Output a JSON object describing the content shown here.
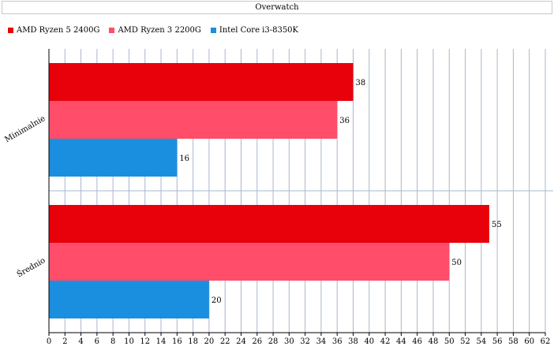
{
  "chart_data": {
    "type": "bar",
    "orientation": "horizontal",
    "title": "Overwatch",
    "categories": [
      "Minimalnie",
      "Średnio"
    ],
    "series": [
      {
        "name": "AMD Ryzen 5 2400G",
        "color": "#e8000b",
        "values": [
          38,
          55
        ]
      },
      {
        "name": "AMD Ryzen 3 2200G",
        "color": "#ff4d6a",
        "values": [
          36,
          50
        ]
      },
      {
        "name": "Intel Core i3-8350K",
        "color": "#1a8fe0",
        "values": [
          16,
          20
        ]
      }
    ],
    "xlim": [
      0,
      62
    ],
    "xticks": [
      0,
      2,
      4,
      6,
      8,
      10,
      12,
      14,
      16,
      18,
      20,
      22,
      24,
      26,
      28,
      30,
      32,
      34,
      36,
      38,
      40,
      42,
      44,
      46,
      48,
      50,
      52,
      54,
      56,
      58,
      60,
      62
    ],
    "xlabel": "",
    "ylabel": "",
    "grid": true,
    "legend_position": "top-left",
    "data_labels": true
  }
}
